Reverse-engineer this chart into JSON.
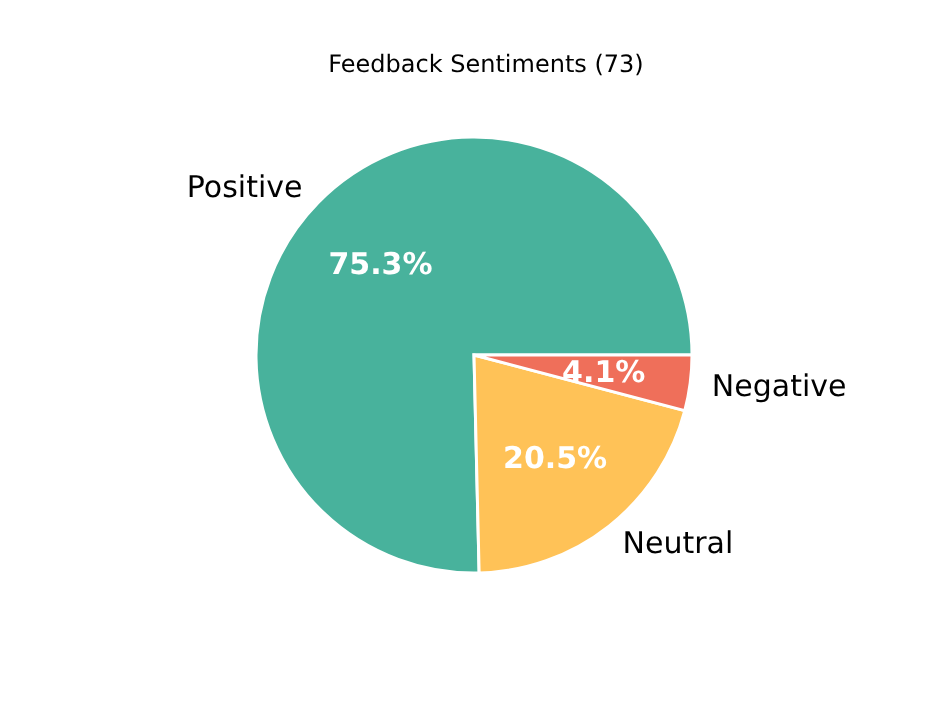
{
  "chart_data": {
    "type": "pie",
    "title": "Feedback Sentiments (73)",
    "categories": [
      "Positive",
      "Neutral",
      "Negative"
    ],
    "values": [
      75.3,
      20.5,
      4.1
    ],
    "value_labels": [
      "75.3%",
      "20.5%",
      "4.1%"
    ],
    "colors": [
      "#48b29c",
      "#ffc257",
      "#ef6f5a"
    ]
  }
}
